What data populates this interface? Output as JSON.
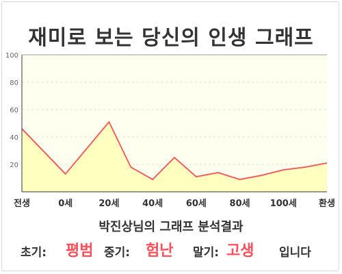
{
  "title": "재미로 보는 당신의 인생 그래프",
  "subtitle": "박진상님의 그래프 분석결과",
  "summary": {
    "early_label": "초기:",
    "early_value": "평범",
    "middle_label": "중기:",
    "middle_value": "험난",
    "late_label": "말기:",
    "late_value": "고생",
    "ending": "입니다"
  },
  "colors": {
    "line": "#f06060",
    "fill": "#ffffc0",
    "plot_bg": "#fffff0",
    "highlight": "#ff4f5a"
  },
  "chart_data": {
    "type": "area",
    "x": [
      0,
      1,
      2,
      2.5,
      3,
      3.5,
      4,
      4.5,
      5,
      5.5,
      6,
      6.5,
      7
    ],
    "values": [
      46,
      13,
      51,
      18,
      9,
      25,
      11,
      14,
      9,
      12,
      16,
      18,
      21
    ],
    "x_ticks": [
      {
        "x": 0,
        "label": "전생"
      },
      {
        "x": 1,
        "label": "0세"
      },
      {
        "x": 2,
        "label": "20세"
      },
      {
        "x": 3,
        "label": "40세"
      },
      {
        "x": 4,
        "label": "60세"
      },
      {
        "x": 5,
        "label": "80세"
      },
      {
        "x": 6,
        "label": "100세"
      },
      {
        "x": 7,
        "label": "환생"
      }
    ],
    "y_ticks": [
      20,
      40,
      60,
      80,
      100
    ],
    "ylim": [
      0,
      100
    ],
    "xlim": [
      0,
      7
    ],
    "grid": true
  }
}
